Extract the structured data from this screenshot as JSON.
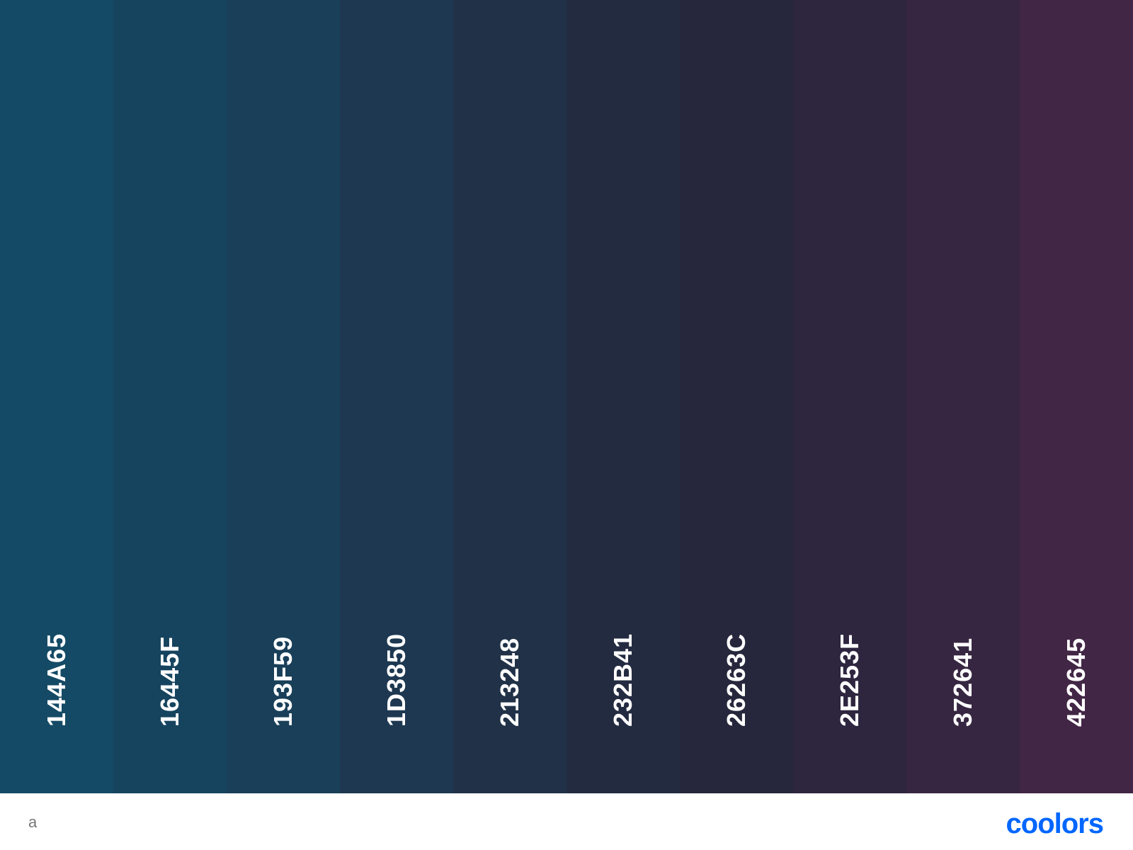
{
  "palette": {
    "swatches": [
      {
        "hex": "144A65",
        "color": "#144A65"
      },
      {
        "hex": "16445F",
        "color": "#16445F"
      },
      {
        "hex": "193F59",
        "color": "#193F59"
      },
      {
        "hex": "1D3850",
        "color": "#1D3850"
      },
      {
        "hex": "213248",
        "color": "#213248"
      },
      {
        "hex": "232B41",
        "color": "#232B41"
      },
      {
        "hex": "26263C",
        "color": "#26263C"
      },
      {
        "hex": "2E253F",
        "color": "#2E253F"
      },
      {
        "hex": "372641",
        "color": "#372641"
      },
      {
        "hex": "422645",
        "color": "#422645"
      }
    ],
    "label_color": "#FFFFFF"
  },
  "footer": {
    "palette_name": "a",
    "brand_name": "coolors",
    "brand_color": "#0066FF"
  }
}
